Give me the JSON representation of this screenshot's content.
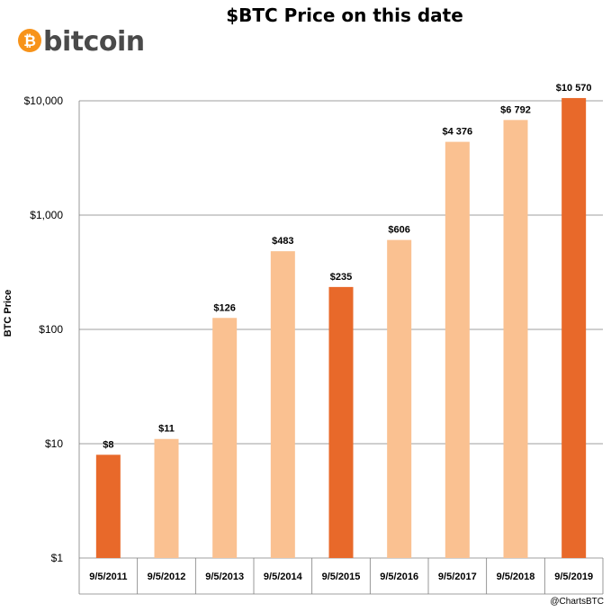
{
  "logo": {
    "symbol": "₿",
    "text": "bitcoin",
    "color": "#f7931a"
  },
  "credit": "@ChartsBTC",
  "colors": {
    "highlight": "#e8692a",
    "normal": "#fac191"
  },
  "chart_data": {
    "type": "bar",
    "title": "$BTC Price on this date",
    "ylabel": "BTC Price",
    "xlabel": "",
    "yscale": "log",
    "ylim": [
      1,
      10000
    ],
    "yticks": [
      1,
      10,
      100,
      1000,
      10000
    ],
    "ytick_labels": [
      "$1",
      "$10",
      "$100",
      "$1,000",
      "$10,000"
    ],
    "grid": true,
    "categories": [
      "9/5/2011",
      "9/5/2012",
      "9/5/2013",
      "9/5/2014",
      "9/5/2015",
      "9/5/2016",
      "9/5/2017",
      "9/5/2018",
      "9/5/2019"
    ],
    "values": [
      8,
      11,
      126,
      483,
      235,
      606,
      4376,
      6792,
      10570
    ],
    "data_labels": [
      "$8",
      "$11",
      "$126",
      "$483",
      "$235",
      "$606",
      "$4 376",
      "$6 792",
      "$10 570"
    ],
    "highlighted": [
      true,
      false,
      false,
      false,
      true,
      false,
      false,
      false,
      true
    ]
  }
}
